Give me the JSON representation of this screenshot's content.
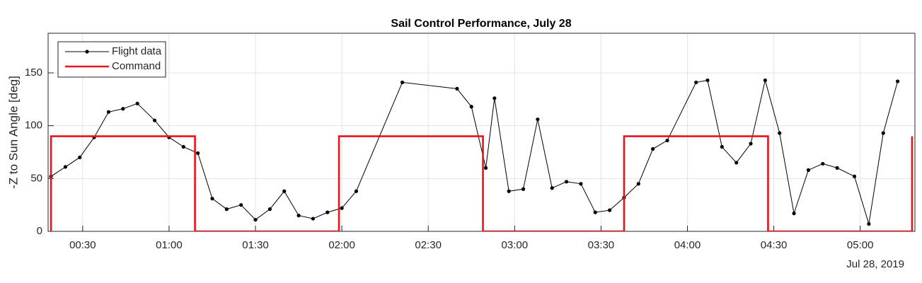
{
  "chart_data": {
    "type": "line",
    "title": "Sail Control Performance, July 28",
    "y_label": "-Z to Sun Angle [deg]",
    "x_sublabel": "Jul 28, 2019",
    "xlim": [
      "00:18",
      "05:19"
    ],
    "xticks": [
      "00:30",
      "01:00",
      "01:30",
      "02:00",
      "02:30",
      "03:00",
      "03:30",
      "04:00",
      "04:30",
      "05:00"
    ],
    "ylim": [
      0,
      187.5
    ],
    "yticks": [
      0,
      50,
      100,
      150
    ],
    "grid": true,
    "legend": "upper left",
    "series": [
      {
        "name": "Flight data",
        "color": "#000000",
        "marker": true,
        "x": [
          "00:19",
          "00:24",
          "00:29",
          "00:34",
          "00:39",
          "00:44",
          "00:49",
          "00:55",
          "01:00",
          "01:05",
          "01:10",
          "01:15",
          "01:20",
          "01:25",
          "01:30",
          "01:35",
          "01:40",
          "01:45",
          "01:50",
          "01:55",
          "02:00",
          "02:05",
          "02:21",
          "02:40",
          "02:45",
          "02:50",
          "02:53",
          "02:58",
          "03:03",
          "03:08",
          "03:13",
          "03:18",
          "03:23",
          "03:28",
          "03:33",
          "03:38",
          "03:43",
          "03:48",
          "03:53",
          "04:03",
          "04:07",
          "04:12",
          "04:17",
          "04:22",
          "04:27",
          "04:32",
          "04:37",
          "04:42",
          "04:47",
          "04:52",
          "04:58",
          "05:03",
          "05:08",
          "05:13"
        ],
        "values": [
          52,
          61,
          70,
          89,
          113,
          116,
          121,
          105,
          89,
          80,
          74,
          31,
          21,
          25,
          11,
          21,
          38,
          15,
          12,
          18,
          22,
          38,
          141,
          135,
          118,
          60,
          126,
          38,
          40,
          106,
          41,
          47,
          45,
          18,
          20,
          32,
          45,
          78,
          86,
          141,
          143,
          80,
          65,
          83,
          143,
          93,
          17,
          58,
          64,
          60,
          52,
          7,
          93,
          142
        ]
      },
      {
        "name": "Command",
        "color": "#e8141b",
        "marker": false,
        "x": [
          "00:19",
          "00:19",
          "01:09",
          "01:09",
          "01:59",
          "01:59",
          "02:49",
          "02:49",
          "03:38",
          "03:38",
          "04:28",
          "04:28",
          "05:18",
          "05:18"
        ],
        "values": [
          0,
          90,
          90,
          0,
          0,
          90,
          90,
          0,
          0,
          90,
          90,
          0,
          0,
          90
        ]
      }
    ]
  }
}
